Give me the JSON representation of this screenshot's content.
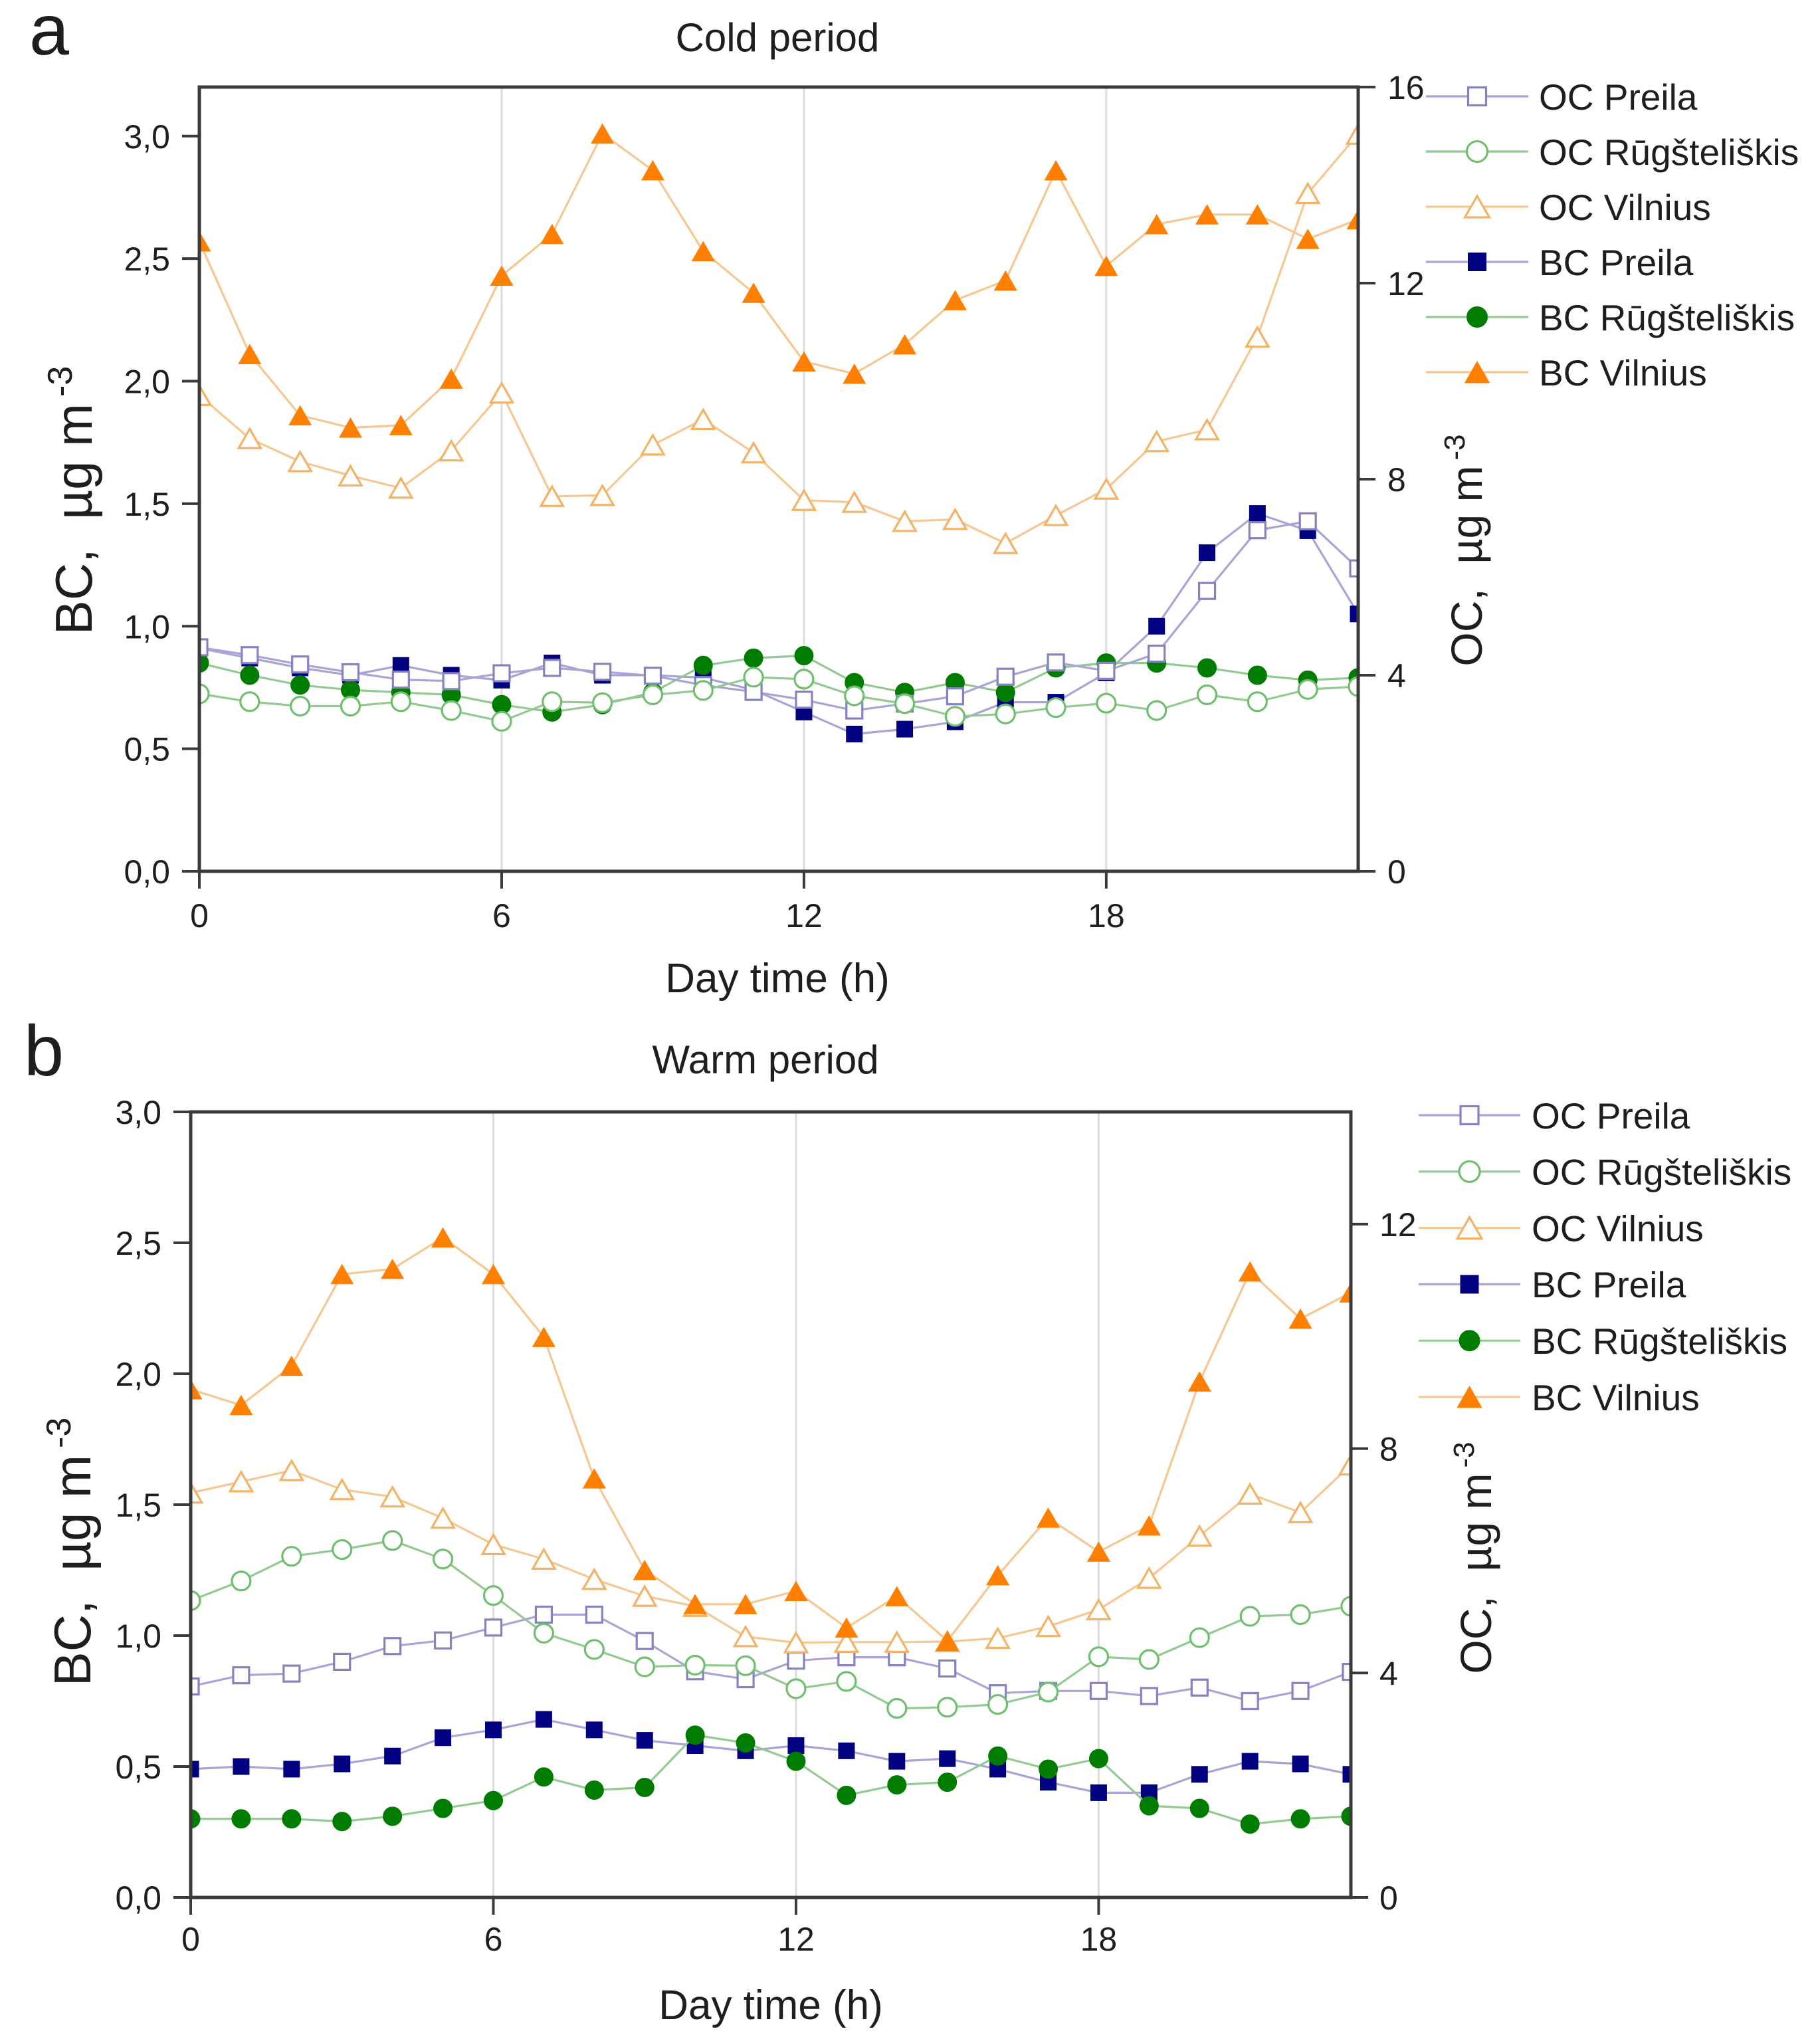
{
  "figure": {
    "background": "#ffffff",
    "axis_color": "#3a3a3a"
  },
  "chart_data": [
    {
      "type": "line",
      "panel_label": "a",
      "title": "Cold period",
      "xlabel": "Day time (h)",
      "ylabel": "BC,  µg m",
      "ylabel_sup": "-3",
      "y2label": "OC,  µg m",
      "y2label_sup": "-3",
      "x": [
        0,
        1,
        2,
        3,
        4,
        5,
        6,
        7,
        8,
        9,
        10,
        11,
        12,
        13,
        14,
        15,
        16,
        17,
        18,
        19,
        20,
        21,
        22,
        23
      ],
      "xlim": [
        0,
        23
      ],
      "xticks": [
        0,
        6,
        12,
        18
      ],
      "xtick_labels": [
        "0",
        "6",
        "12",
        "18"
      ],
      "ylim": [
        0,
        3.2
      ],
      "yticks": [
        0,
        0.5,
        1.0,
        1.5,
        2.0,
        2.5,
        3.0
      ],
      "ytick_labels": [
        "0,0",
        "0,5",
        "1,0",
        "1,5",
        "2,0",
        "2,5",
        "3,0"
      ],
      "y2lim": [
        0,
        16
      ],
      "y2ticks": [
        0,
        4,
        8,
        12,
        16
      ],
      "y2tick_labels": [
        "0",
        "4",
        "8",
        "12",
        "16"
      ],
      "grid": {
        "vertical": true,
        "horizontal": false,
        "color": "#dcdcdc"
      },
      "legend": {
        "placement": "outside-right-top"
      },
      "series": [
        {
          "name": "OC Preila",
          "axis": "right",
          "marker": "open-square",
          "marker_color": "#8582c0",
          "line_color": "#a7a4d6",
          "values": [
            4.57,
            4.41,
            4.22,
            4.06,
            3.91,
            3.88,
            4.04,
            4.15,
            4.07,
            3.99,
            3.8,
            3.66,
            3.5,
            3.28,
            3.42,
            3.57,
            3.97,
            4.26,
            4.09,
            4.44,
            5.72,
            6.96,
            7.14,
            6.18
          ]
        },
        {
          "name": "OC Rūgšteliškis",
          "axis": "right",
          "marker": "open-circle",
          "marker_color": "#6fbf6f",
          "line_color": "#93c993",
          "values": [
            3.62,
            3.46,
            3.37,
            3.37,
            3.46,
            3.28,
            3.06,
            3.46,
            3.44,
            3.6,
            3.69,
            3.96,
            3.92,
            3.58,
            3.42,
            3.16,
            3.21,
            3.34,
            3.43,
            3.28,
            3.6,
            3.46,
            3.71,
            3.77
          ]
        },
        {
          "name": "OC Vilnius",
          "axis": "right",
          "marker": "open-triangle",
          "marker_color": "#f3b266",
          "line_color": "#f6c791",
          "values": [
            9.71,
            8.83,
            8.36,
            8.07,
            7.82,
            8.58,
            9.76,
            7.65,
            7.67,
            8.7,
            9.22,
            8.54,
            7.57,
            7.53,
            7.14,
            7.18,
            6.69,
            7.26,
            7.8,
            8.77,
            9.01,
            10.9,
            13.83,
            15.04
          ]
        },
        {
          "name": "BC Preila",
          "axis": "left",
          "marker": "filled-square",
          "marker_color": "#000080",
          "line_color": "#a7a4d6",
          "values": [
            0.91,
            0.87,
            0.83,
            0.8,
            0.84,
            0.8,
            0.78,
            0.85,
            0.8,
            0.8,
            0.79,
            0.74,
            0.65,
            0.56,
            0.58,
            0.61,
            0.69,
            0.69,
            0.81,
            1.0,
            1.3,
            1.46,
            1.39,
            1.05
          ]
        },
        {
          "name": "BC Rūgšteliškis",
          "axis": "left",
          "marker": "filled-circle",
          "marker_color": "#007d00",
          "line_color": "#93c993",
          "values": [
            0.85,
            0.8,
            0.76,
            0.74,
            0.73,
            0.72,
            0.68,
            0.65,
            0.68,
            0.73,
            0.84,
            0.87,
            0.88,
            0.77,
            0.73,
            0.77,
            0.73,
            0.83,
            0.85,
            0.85,
            0.83,
            0.8,
            0.78,
            0.79
          ]
        },
        {
          "name": "BC Vilnius",
          "axis": "left",
          "marker": "filled-triangle",
          "marker_color": "#ff7f00",
          "line_color": "#f6c791",
          "values": [
            2.57,
            2.11,
            1.86,
            1.81,
            1.82,
            2.01,
            2.43,
            2.6,
            3.01,
            2.86,
            2.53,
            2.36,
            2.08,
            2.03,
            2.15,
            2.33,
            2.41,
            2.86,
            2.47,
            2.64,
            2.68,
            2.68,
            2.58,
            2.66
          ]
        }
      ]
    },
    {
      "type": "line",
      "panel_label": "b",
      "title": "Warm period",
      "xlabel": "Day time (h)",
      "ylabel": "BC,  µg m",
      "ylabel_sup": "-3",
      "y2label": "OC,  µg m",
      "y2label_sup": "-3",
      "x": [
        0,
        1,
        2,
        3,
        4,
        5,
        6,
        7,
        8,
        9,
        10,
        11,
        12,
        13,
        14,
        15,
        16,
        17,
        18,
        19,
        20,
        21,
        22,
        23
      ],
      "xlim": [
        0,
        23
      ],
      "xticks": [
        0,
        6,
        12,
        18
      ],
      "xtick_labels": [
        "0",
        "6",
        "12",
        "18"
      ],
      "ylim": [
        0,
        3.0
      ],
      "yticks": [
        0,
        0.5,
        1.0,
        1.5,
        2.0,
        2.5,
        3.0
      ],
      "ytick_labels": [
        "0,0",
        "0,5",
        "1,0",
        "1,5",
        "2,0",
        "2,5",
        "3,0"
      ],
      "y2lim": [
        0,
        14
      ],
      "y2ticks": [
        0,
        4,
        8,
        12
      ],
      "y2tick_labels": [
        "0",
        "4",
        "8",
        "12"
      ],
      "grid": {
        "vertical": true,
        "horizontal": false,
        "color": "#dcdcdc"
      },
      "legend": {
        "placement": "outside-right-top"
      },
      "series": [
        {
          "name": "OC Preila",
          "axis": "right",
          "marker": "open-square",
          "marker_color": "#8582c0",
          "line_color": "#a7a4d6",
          "values": [
            3.76,
            3.96,
            3.99,
            4.2,
            4.48,
            4.58,
            4.81,
            5.04,
            5.04,
            4.57,
            4.03,
            3.89,
            4.22,
            4.28,
            4.28,
            4.08,
            3.64,
            3.68,
            3.68,
            3.59,
            3.74,
            3.5,
            3.68,
            4.02
          ]
        },
        {
          "name": "OC Rūgšteliškis",
          "axis": "right",
          "marker": "open-circle",
          "marker_color": "#6fbf6f",
          "line_color": "#93c993",
          "values": [
            5.29,
            5.64,
            6.08,
            6.2,
            6.36,
            6.03,
            5.38,
            4.71,
            4.42,
            4.11,
            4.14,
            4.13,
            3.72,
            3.85,
            3.37,
            3.39,
            3.44,
            3.66,
            4.29,
            4.24,
            4.63,
            5.01,
            5.04,
            5.19
          ]
        },
        {
          "name": "OC Vilnius",
          "axis": "right",
          "marker": "open-triangle",
          "marker_color": "#f3b266",
          "line_color": "#f6c791",
          "values": [
            7.21,
            7.41,
            7.61,
            7.27,
            7.14,
            6.76,
            6.29,
            6.03,
            5.67,
            5.37,
            5.19,
            4.65,
            4.54,
            4.55,
            4.55,
            4.56,
            4.62,
            4.83,
            5.13,
            5.69,
            6.44,
            7.19,
            6.86,
            7.71
          ]
        },
        {
          "name": "BC Preila",
          "axis": "left",
          "marker": "filled-square",
          "marker_color": "#000080",
          "line_color": "#a7a4d6",
          "values": [
            0.49,
            0.5,
            0.49,
            0.51,
            0.54,
            0.61,
            0.64,
            0.68,
            0.64,
            0.6,
            0.58,
            0.56,
            0.58,
            0.56,
            0.52,
            0.53,
            0.49,
            0.44,
            0.4,
            0.4,
            0.47,
            0.52,
            0.51,
            0.47
          ]
        },
        {
          "name": "BC Rūgšteliškis",
          "axis": "left",
          "marker": "filled-circle",
          "marker_color": "#007d00",
          "line_color": "#93c993",
          "values": [
            0.3,
            0.3,
            0.3,
            0.29,
            0.31,
            0.34,
            0.37,
            0.46,
            0.41,
            0.42,
            0.62,
            0.59,
            0.52,
            0.39,
            0.43,
            0.44,
            0.54,
            0.49,
            0.53,
            0.35,
            0.34,
            0.28,
            0.3,
            0.31
          ]
        },
        {
          "name": "BC Vilnius",
          "axis": "left",
          "marker": "filled-triangle",
          "marker_color": "#ff7f00",
          "line_color": "#f6c791",
          "values": [
            1.94,
            1.88,
            2.03,
            2.38,
            2.4,
            2.52,
            2.38,
            2.14,
            1.6,
            1.25,
            1.12,
            1.12,
            1.17,
            1.03,
            1.15,
            0.98,
            1.23,
            1.45,
            1.32,
            1.42,
            1.97,
            2.39,
            2.21,
            2.31
          ]
        }
      ]
    }
  ]
}
